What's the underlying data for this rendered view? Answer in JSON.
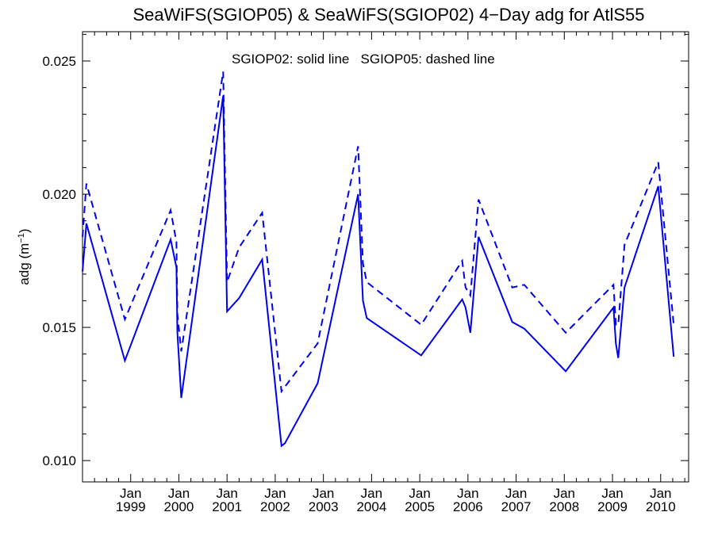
{
  "chart_data": {
    "type": "line",
    "title": "SeaWiFS(SGIOP05) & SeaWiFS(SGIOP02) 4−Day adg for AtlS55",
    "ylabel": "adg (m",
    "ylabel_sup": "−1",
    "ylabel_end": ")",
    "annotation": "SGIOP02: solid line   SGIOP05: dashed line",
    "xlim": [
      1998.0,
      2010.58
    ],
    "ylim": [
      0.0092,
      0.0261
    ],
    "y_ticks": [
      "0.010",
      "0.015",
      "0.020",
      "0.025"
    ],
    "y_tick_values": [
      0.01,
      0.015,
      0.02,
      0.025
    ],
    "x_ticks": [
      {
        "month": "Jan",
        "year": "1999",
        "value": 1999.0
      },
      {
        "month": "Jan",
        "year": "2000",
        "value": 2000.0
      },
      {
        "month": "Jan",
        "year": "2001",
        "value": 2001.0
      },
      {
        "month": "Jan",
        "year": "2002",
        "value": 2002.0
      },
      {
        "month": "Jan",
        "year": "2003",
        "value": 2003.0
      },
      {
        "month": "Jan",
        "year": "2004",
        "value": 2004.0
      },
      {
        "month": "Jan",
        "year": "2005",
        "value": 2005.0
      },
      {
        "month": "Jan",
        "year": "2006",
        "value": 2006.0
      },
      {
        "month": "Jan",
        "year": "2007",
        "value": 2007.0
      },
      {
        "month": "Jan",
        "year": "2008",
        "value": 2008.0
      },
      {
        "month": "Jan",
        "year": "2009",
        "value": 2009.0
      },
      {
        "month": "Jan",
        "year": "2010",
        "value": 2010.0
      }
    ],
    "line_color": "#0000ee",
    "series": [
      {
        "style": "solid",
        "x": [
          1998.0,
          1998.08,
          1998.88,
          1999.83,
          1999.95,
          1999.97,
          2000.05,
          2000.92,
          2001.0,
          2001.25,
          2001.73,
          2002.13,
          2002.2,
          2002.88,
          2003.72,
          2003.82,
          2003.9,
          2005.03,
          2005.88,
          2005.95,
          2006.05,
          2006.22,
          2006.92,
          2007.17,
          2008.03,
          2009.02,
          2009.07,
          2009.12,
          2009.25,
          2009.95,
          2010.27
        ],
        "y": [
          0.0171,
          0.0189,
          0.01375,
          0.0183,
          0.01725,
          0.0148,
          0.01235,
          0.0237,
          0.0156,
          0.0161,
          0.01755,
          0.01055,
          0.01065,
          0.0129,
          0.02,
          0.016,
          0.01535,
          0.01395,
          0.01605,
          0.01575,
          0.0148,
          0.0184,
          0.0152,
          0.01495,
          0.01335,
          0.01575,
          0.0144,
          0.01385,
          0.0165,
          0.0203,
          0.0139
        ]
      },
      {
        "style": "dashed",
        "x": [
          1998.0,
          1998.08,
          1998.88,
          1999.83,
          1999.95,
          1999.97,
          2000.05,
          2000.92,
          2001.0,
          2001.25,
          2001.73,
          2002.13,
          2002.88,
          2003.72,
          2003.82,
          2003.9,
          2005.03,
          2005.88,
          2005.95,
          2006.05,
          2006.22,
          2006.92,
          2007.17,
          2008.03,
          2009.02,
          2009.07,
          2009.12,
          2009.25,
          2009.95,
          2010.27
        ],
        "y": [
          0.0184,
          0.0204,
          0.0153,
          0.0194,
          0.0182,
          0.0155,
          0.0141,
          0.0246,
          0.0167,
          0.018,
          0.0193,
          0.0126,
          0.0144,
          0.0218,
          0.0174,
          0.0167,
          0.0151,
          0.0175,
          0.0165,
          0.0162,
          0.0198,
          0.0165,
          0.0166,
          0.0148,
          0.0166,
          0.0151,
          0.0151,
          0.0181,
          0.0212,
          0.0151
        ]
      }
    ]
  }
}
